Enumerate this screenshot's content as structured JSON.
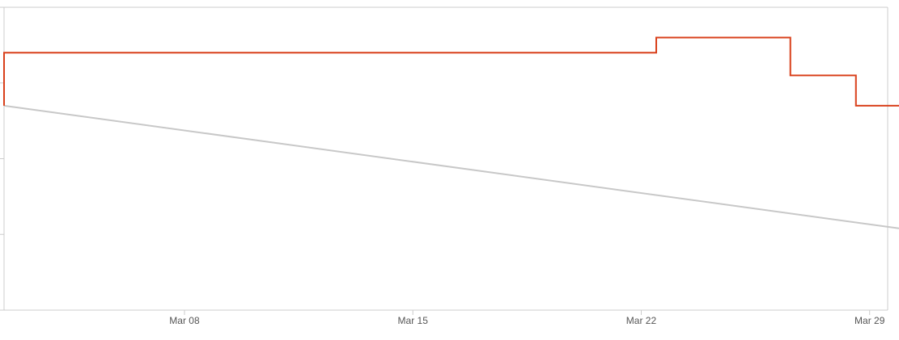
{
  "chart_data": {
    "type": "line",
    "xlim": [
      2.47,
      29.9
    ],
    "xticks": [
      {
        "value": 8,
        "label": "Mar 08"
      },
      {
        "value": 15,
        "label": "Mar 15"
      },
      {
        "value": 22,
        "label": "Mar 22"
      },
      {
        "value": 29,
        "label": "Mar 29"
      }
    ],
    "ylim": [
      0,
      4
    ],
    "yticks": [
      0,
      1,
      2,
      3,
      4
    ],
    "series": [
      {
        "color": "#c8c8c8",
        "x": [
          2.47,
          29.9
        ],
        "values": [
          2.7,
          1.08
        ]
      },
      {
        "color": "#d9401b",
        "x": [
          2.47,
          2.47,
          22.46,
          22.46,
          26.57,
          26.57,
          28.58,
          28.58,
          29.9
        ],
        "values": [
          2.7,
          3.4,
          3.4,
          3.6,
          3.6,
          3.1,
          3.1,
          2.7,
          2.7
        ]
      }
    ]
  }
}
